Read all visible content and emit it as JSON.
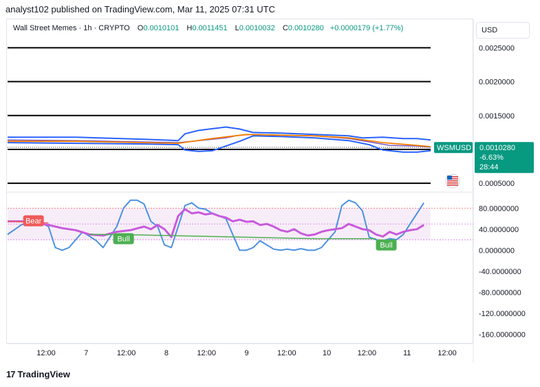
{
  "header": {
    "text": "analyst102 published on TradingView.com, Mar 11, 2025 07:31 UTC"
  },
  "legend": {
    "symbol": "Wall Street Memes · 1h · CRYPTO",
    "o_key": "O",
    "o": "0.0010101",
    "h_key": "H",
    "h": "0.0011451",
    "l_key": "L",
    "l": "0.0010032",
    "c_key": "C",
    "c": "0.0010280",
    "change": "+0.0000179 (+1.77%)"
  },
  "currency": "USD",
  "price_tag": {
    "symbol": "WSMUSD",
    "price": "0.0010280",
    "change": "-6.63%",
    "countdown": "28:44"
  },
  "footer": {
    "brand": "TradingView"
  },
  "colors": {
    "up": "#089981",
    "bollinger": "#2962ff",
    "moving_average": "#f57c00",
    "stoch_rsi": "#4a90e2",
    "rsi": "#c85adc",
    "bear": "#f05a5a",
    "bull": "#4caf50"
  },
  "chart_data": [
    {
      "type": "line",
      "panel": "price",
      "y_ticks": [
        "0.0025000",
        "0.0020000",
        "0.0015000",
        "0.0005000"
      ],
      "ylim": [
        0.0004,
        0.0029
      ],
      "horizontal_levels": [
        0.0025,
        0.002,
        0.0015,
        0.001,
        0.0005
      ],
      "x_ticks": [
        "12:00",
        "7",
        "12:00",
        "8",
        "12:00",
        "9",
        "12:00",
        "10",
        "12:00",
        "11",
        "12:00"
      ],
      "series": [
        {
          "role": "upper_band",
          "values": [
            [
              0,
              0.00118
            ],
            [
              10,
              0.00118
            ],
            [
              20,
              0.00115
            ],
            [
              25,
              0.00113
            ],
            [
              26,
              0.00123
            ],
            [
              28,
              0.00128
            ],
            [
              32,
              0.00133
            ],
            [
              34,
              0.0013
            ],
            [
              36,
              0.00125
            ],
            [
              40,
              0.00124
            ],
            [
              45,
              0.00122
            ],
            [
              50,
              0.0012
            ],
            [
              52,
              0.00117
            ],
            [
              55,
              0.00118
            ],
            [
              58,
              0.00116
            ],
            [
              60,
              0.00116
            ],
            [
              62,
              0.00114
            ]
          ]
        },
        {
          "role": "lower_band",
          "values": [
            [
              0,
              0.0011
            ],
            [
              10,
              0.00109
            ],
            [
              20,
              0.00108
            ],
            [
              25,
              0.00107
            ],
            [
              26,
              0.00099
            ],
            [
              28,
              0.00097
            ],
            [
              30,
              0.00098
            ],
            [
              34,
              0.00112
            ],
            [
              36,
              0.0012
            ],
            [
              40,
              0.00119
            ],
            [
              45,
              0.00117
            ],
            [
              50,
              0.00113
            ],
            [
              53,
              0.00107
            ],
            [
              55,
              0.00099
            ],
            [
              58,
              0.00096
            ],
            [
              60,
              0.00096
            ],
            [
              62,
              0.00098
            ]
          ]
        },
        {
          "role": "middle_band",
          "values": [
            [
              0,
              0.00114
            ],
            [
              10,
              0.00113
            ],
            [
              20,
              0.00111
            ],
            [
              25,
              0.0011
            ],
            [
              28,
              0.00113
            ],
            [
              32,
              0.00117
            ],
            [
              34,
              0.00121
            ],
            [
              36,
              0.00122
            ],
            [
              40,
              0.00121
            ],
            [
              45,
              0.0012
            ],
            [
              50,
              0.00116
            ],
            [
              53,
              0.00111
            ],
            [
              56,
              0.00106
            ],
            [
              60,
              0.00105
            ],
            [
              62,
              0.00103
            ]
          ]
        },
        {
          "role": "moving_average",
          "values": [
            [
              0,
              0.00112
            ],
            [
              10,
              0.00112
            ],
            [
              15,
              0.00111
            ],
            [
              20,
              0.0011
            ],
            [
              25,
              0.00109
            ],
            [
              30,
              0.00116
            ],
            [
              35,
              0.00122
            ],
            [
              40,
              0.00121
            ],
            [
              45,
              0.0012
            ],
            [
              50,
              0.00117
            ],
            [
              55,
              0.0011
            ],
            [
              60,
              0.00106
            ],
            [
              62,
              0.00104
            ]
          ]
        }
      ]
    },
    {
      "type": "line",
      "panel": "oscillator",
      "y_ticks": [
        "80.0000000",
        "40.0000000",
        "0.0000000",
        "-40.0000000",
        "-80.0000000",
        "-120.0000000",
        "-160.0000000"
      ],
      "ylim": [
        -175,
        100
      ],
      "bands": [
        80,
        20
      ],
      "annotations": [
        "Bear",
        "Bull",
        "Bull"
      ],
      "series": [
        {
          "role": "stoch_rsi",
          "values": [
            [
              0,
              30
            ],
            [
              2,
              48
            ],
            [
              4,
              58
            ],
            [
              6,
              45
            ],
            [
              7,
              5
            ],
            [
              8,
              0
            ],
            [
              9,
              5
            ],
            [
              11,
              35
            ],
            [
              13,
              18
            ],
            [
              14,
              5
            ],
            [
              15,
              25
            ],
            [
              16,
              45
            ],
            [
              17,
              80
            ],
            [
              18,
              95
            ],
            [
              19,
              95
            ],
            [
              20,
              88
            ],
            [
              21,
              55
            ],
            [
              22,
              45
            ],
            [
              23,
              10
            ],
            [
              24,
              5
            ],
            [
              25,
              45
            ],
            [
              26,
              85
            ],
            [
              27,
              90
            ],
            [
              28,
              80
            ],
            [
              29,
              78
            ],
            [
              30,
              70
            ],
            [
              31,
              65
            ],
            [
              32,
              60
            ],
            [
              33,
              30
            ],
            [
              34,
              0
            ],
            [
              35,
              0
            ],
            [
              36,
              5
            ],
            [
              37,
              18
            ],
            [
              38,
              10
            ],
            [
              39,
              2
            ],
            [
              40,
              0
            ],
            [
              41,
              2
            ],
            [
              42,
              0
            ],
            [
              43,
              3
            ],
            [
              44,
              0
            ],
            [
              45,
              0
            ],
            [
              46,
              5
            ],
            [
              47,
              20
            ],
            [
              48,
              35
            ],
            [
              49,
              85
            ],
            [
              50,
              95
            ],
            [
              51,
              90
            ],
            [
              52,
              75
            ],
            [
              53,
              25
            ],
            [
              54,
              20
            ],
            [
              55,
              18
            ],
            [
              56,
              22
            ],
            [
              57,
              20
            ],
            [
              58,
              30
            ],
            [
              59,
              50
            ],
            [
              60,
              70
            ],
            [
              61,
              90
            ]
          ]
        },
        {
          "role": "rsi",
          "values": [
            [
              0,
              55
            ],
            [
              2,
              55
            ],
            [
              4,
              52
            ],
            [
              6,
              48
            ],
            [
              8,
              42
            ],
            [
              10,
              38
            ],
            [
              12,
              30
            ],
            [
              14,
              28
            ],
            [
              16,
              35
            ],
            [
              18,
              38
            ],
            [
              20,
              45
            ],
            [
              21,
              40
            ],
            [
              22,
              48
            ],
            [
              23,
              40
            ],
            [
              24,
              25
            ],
            [
              25,
              65
            ],
            [
              26,
              78
            ],
            [
              27,
              70
            ],
            [
              28,
              72
            ],
            [
              29,
              68
            ],
            [
              30,
              70
            ],
            [
              31,
              65
            ],
            [
              32,
              62
            ],
            [
              33,
              55
            ],
            [
              34,
              58
            ],
            [
              35,
              54
            ],
            [
              36,
              55
            ],
            [
              37,
              48
            ],
            [
              38,
              50
            ],
            [
              39,
              45
            ],
            [
              40,
              38
            ],
            [
              41,
              35
            ],
            [
              42,
              40
            ],
            [
              43,
              32
            ],
            [
              44,
              28
            ],
            [
              45,
              30
            ],
            [
              46,
              35
            ],
            [
              47,
              38
            ],
            [
              48,
              40
            ],
            [
              49,
              42
            ],
            [
              50,
              50
            ],
            [
              51,
              45
            ],
            [
              52,
              40
            ],
            [
              53,
              38
            ],
            [
              54,
              30
            ],
            [
              55,
              26
            ],
            [
              56,
              35
            ],
            [
              57,
              30
            ],
            [
              58,
              35
            ],
            [
              59,
              38
            ],
            [
              60,
              40
            ],
            [
              61,
              48
            ]
          ]
        },
        {
          "role": "trend_bear",
          "values": [
            [
              0,
              55
            ],
            [
              6,
              52
            ]
          ]
        },
        {
          "role": "trend_bull",
          "values": [
            [
              12,
              30
            ],
            [
              16,
              30
            ],
            [
              45,
              22
            ],
            [
              54,
              22
            ]
          ]
        }
      ]
    }
  ]
}
